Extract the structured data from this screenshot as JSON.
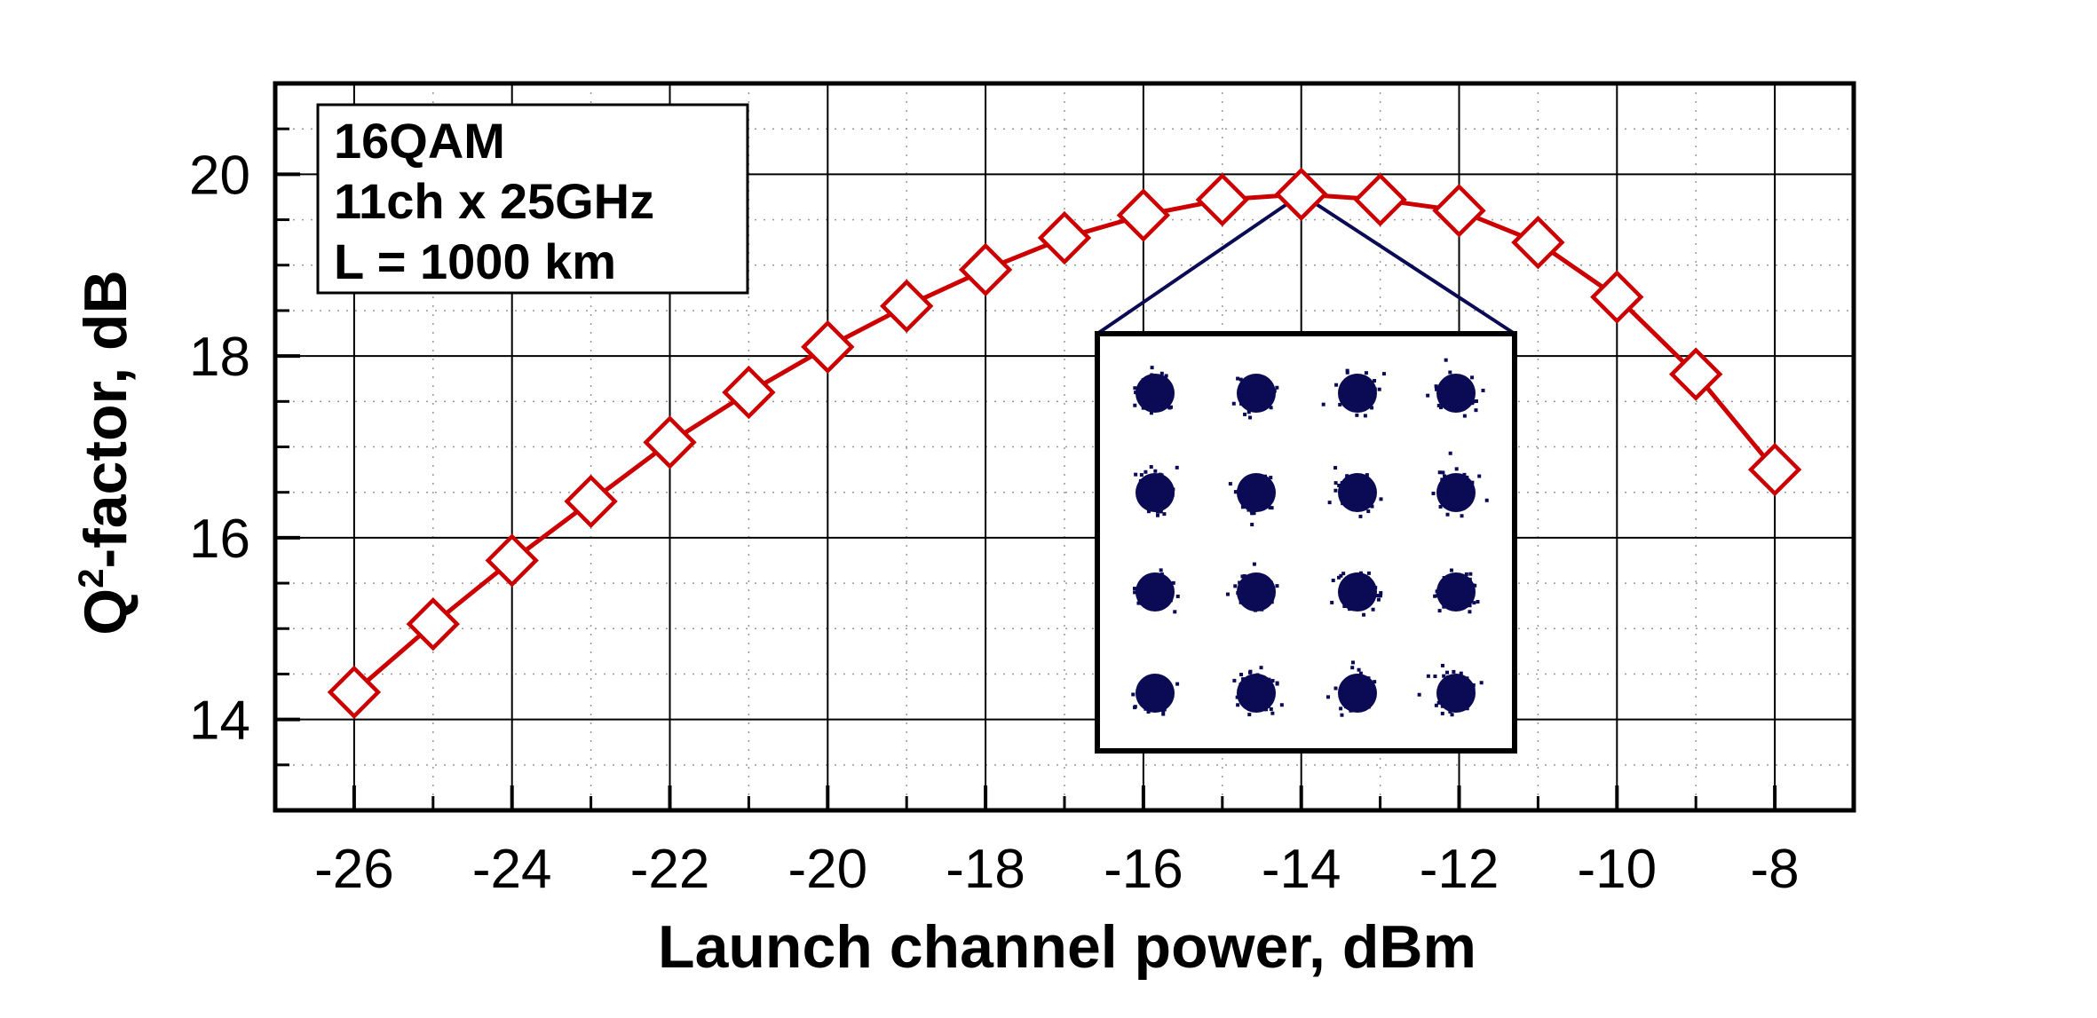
{
  "chart_data": {
    "type": "line",
    "title": "",
    "xlabel": "Launch channel power, dBm",
    "ylabel_prefix": "Q",
    "ylabel_superscript": "2",
    "ylabel_suffix": "-factor, dB",
    "xlim": [
      -27,
      -7
    ],
    "ylim": [
      13,
      21
    ],
    "xticks": [
      -26,
      -24,
      -22,
      -20,
      -18,
      -16,
      -14,
      -12,
      -10,
      -8
    ],
    "xtick_labels": [
      "-26",
      "-24",
      "-22",
      "-20",
      "-18",
      "-16",
      "-14",
      "-12",
      "-10",
      "-8"
    ],
    "yticks": [
      14,
      16,
      18,
      20
    ],
    "ytick_labels": [
      "14",
      "16",
      "18",
      "20"
    ],
    "grid": true,
    "series": [
      {
        "color": "#cc0000",
        "marker": "diamond",
        "x": [
          -26,
          -25,
          -24,
          -23,
          -22,
          -21,
          -20,
          -19,
          -18,
          -17,
          -16,
          -15,
          -14,
          -13,
          -12,
          -11,
          -10,
          -9,
          -8
        ],
        "y": [
          14.3,
          15.05,
          15.75,
          16.4,
          17.05,
          17.6,
          18.1,
          18.55,
          18.95,
          19.3,
          19.55,
          19.72,
          19.78,
          19.72,
          19.6,
          19.25,
          18.65,
          17.8,
          16.75
        ]
      }
    ],
    "annotation_box": {
      "lines": [
        "16QAM",
        "11ch x 25GHz",
        "L = 1000 km"
      ]
    },
    "inset": {
      "description_type": "constellation",
      "points_per_axis": 4,
      "point_color": "#0a0a55",
      "linked_x": -14,
      "linked_y": 19.78
    }
  }
}
